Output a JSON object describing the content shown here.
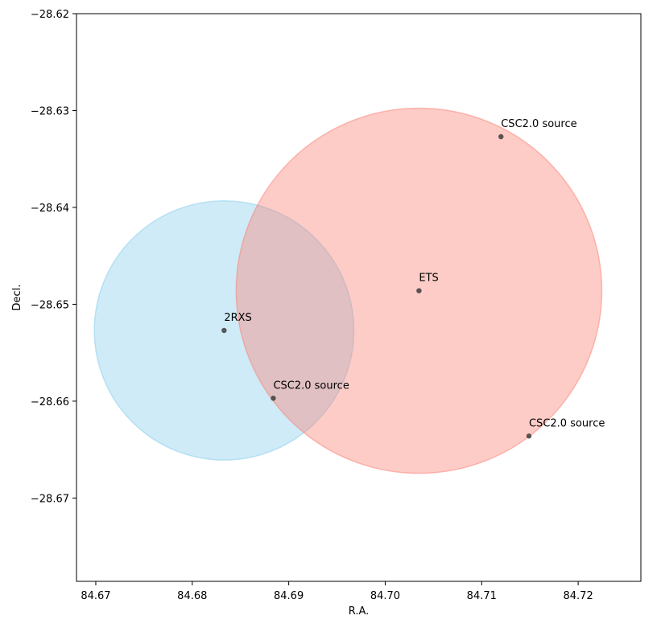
{
  "chart_data": {
    "type": "scatter",
    "title": "",
    "xlabel": "R.A.",
    "ylabel": "Decl.",
    "xlim": [
      84.668,
      84.7265
    ],
    "ylim": [
      -28.6786,
      -28.62
    ],
    "x_ticks": [
      84.67,
      84.68,
      84.69,
      84.7,
      84.71,
      84.72
    ],
    "x_tick_labels": [
      "84.67",
      "84.68",
      "84.69",
      "84.70",
      "84.71",
      "84.72"
    ],
    "y_ticks": [
      -28.62,
      -28.63,
      -28.64,
      -28.65,
      -28.66,
      -28.67
    ],
    "y_tick_labels": [
      "−28.62",
      "−28.63",
      "−28.64",
      "−28.65",
      "−28.66",
      "−28.67"
    ],
    "grid": false,
    "regions": [
      {
        "label": "2RXS",
        "center": [
          84.6833,
          -28.6527
        ],
        "radius": 0.01345,
        "color": "#87ceeb",
        "alpha": 0.4
      },
      {
        "label": "ETS",
        "center": [
          84.7035,
          -28.6486
        ],
        "radius": 0.01895,
        "color": "#fa8072",
        "alpha": 0.4
      }
    ],
    "points": [
      {
        "label": "2RXS",
        "x": 84.6833,
        "y": -28.6527
      },
      {
        "label": "ETS",
        "x": 84.7035,
        "y": -28.6486
      },
      {
        "label": "CSC2.0 source",
        "x": 84.712,
        "y": -28.6327
      },
      {
        "label": "CSC2.0 source",
        "x": 84.6884,
        "y": -28.6597
      },
      {
        "label": "CSC2.0 source",
        "x": 84.7149,
        "y": -28.6636
      }
    ],
    "point_color": "#333333"
  }
}
